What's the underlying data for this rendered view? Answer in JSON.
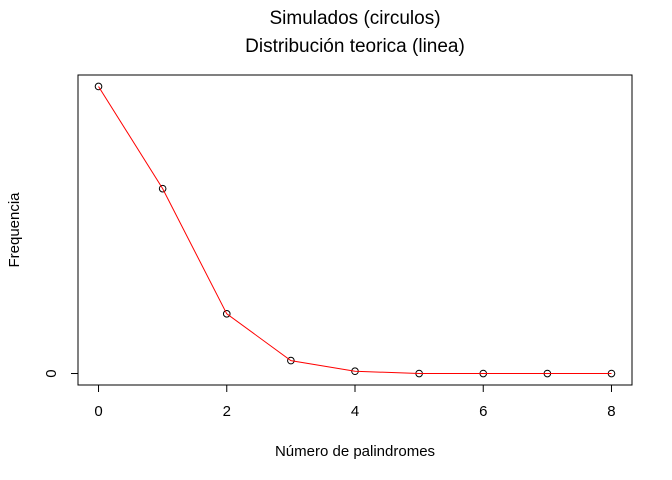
{
  "chart_data": {
    "type": "line",
    "title": "Simulados (circulos)",
    "subtitle": "Distribución teorica (linea)",
    "xlabel": "Número de palindromes",
    "ylabel": "Frequencia",
    "x": [
      0,
      1,
      2,
      3,
      4,
      5,
      6,
      7,
      8
    ],
    "xlim": [
      -0.32,
      8.32
    ],
    "x_ticks": [
      0,
      2,
      4,
      6,
      8
    ],
    "ylim": [
      -0.04,
      1.04
    ],
    "y_ticks": [
      0
    ],
    "y_tick_labels": [
      "0"
    ],
    "series": [
      {
        "kind": "points",
        "marker": "open-circle",
        "color": "#000000",
        "values": [
          1.0,
          0.644,
          0.208,
          0.045,
          0.008,
          0.0,
          0.0,
          0.0,
          0.0
        ]
      },
      {
        "kind": "line",
        "color": "#ff0000",
        "values": [
          1.0,
          0.644,
          0.208,
          0.045,
          0.008,
          0.0,
          0.0,
          0.0,
          0.0
        ]
      }
    ],
    "grid": false,
    "legend": "none"
  }
}
